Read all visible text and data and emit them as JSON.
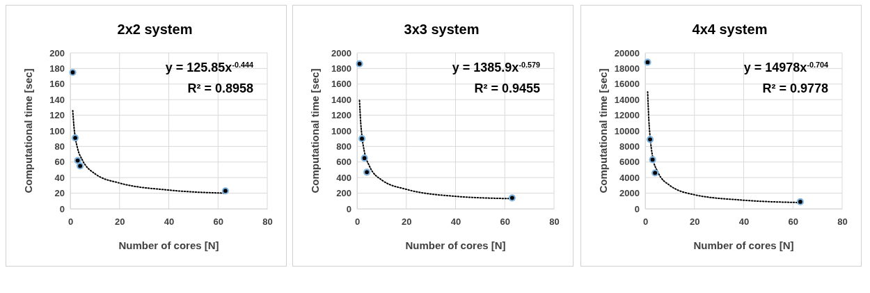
{
  "chart_data": [
    {
      "type": "scatter",
      "title": "2x2 system",
      "xlabel": "Number of cores [N]",
      "ylabel": "Computational time [sec]",
      "xlim": [
        0,
        80
      ],
      "xticks": [
        0,
        20,
        40,
        60,
        80
      ],
      "ylim": [
        0,
        200
      ],
      "yticks": [
        0,
        20,
        40,
        60,
        80,
        100,
        120,
        140,
        160,
        180,
        200
      ],
      "grid": true,
      "annotations": [
        "y = 125.85x$^{-0.444}$",
        "R² = 0.8958"
      ],
      "series": [
        {
          "color": "#000000",
          "marker": "circle",
          "x": [
            1,
            2,
            3,
            4,
            63
          ],
          "values": [
            175,
            91,
            62,
            55,
            23
          ]
        },
        {
          "type": "line",
          "color": "#000000",
          "line_style": "dotted",
          "marker": "none",
          "x": [
            1,
            1.5,
            2,
            3,
            5,
            10,
            20,
            40,
            63
          ],
          "values": [
            126,
            105,
            92,
            77,
            62,
            45,
            33,
            24,
            20
          ]
        }
      ]
    },
    {
      "type": "scatter",
      "title": "3x3 system",
      "xlabel": "Number of cores [N]",
      "ylabel": "Computational time [sec]",
      "xlim": [
        0,
        80
      ],
      "xticks": [
        0,
        20,
        40,
        60,
        80
      ],
      "ylim": [
        0,
        2000
      ],
      "yticks": [
        0,
        200,
        400,
        600,
        800,
        1000,
        1200,
        1400,
        1600,
        1800,
        2000
      ],
      "grid": true,
      "annotations": [
        "y = 1385.9x$^{-0.579}$",
        "R² = 0.9455"
      ],
      "series": [
        {
          "color": "#000000",
          "marker": "circle",
          "x": [
            1,
            2,
            3,
            4,
            63
          ],
          "values": [
            1860,
            900,
            650,
            470,
            140
          ]
        },
        {
          "type": "line",
          "color": "#000000",
          "line_style": "dotted",
          "marker": "none",
          "x": [
            1,
            1.5,
            2,
            3,
            5,
            10,
            20,
            40,
            63
          ],
          "values": [
            1390,
            1100,
            930,
            730,
            550,
            370,
            250,
            160,
            130
          ]
        }
      ]
    },
    {
      "type": "scatter",
      "title": "4x4 system",
      "xlabel": "Number of cores [N]",
      "ylabel": "Computational time [sec]",
      "xlim": [
        0,
        80
      ],
      "xticks": [
        0,
        20,
        40,
        60,
        80
      ],
      "ylim": [
        0,
        20000
      ],
      "yticks": [
        0,
        2000,
        4000,
        6000,
        8000,
        10000,
        12000,
        14000,
        16000,
        18000,
        20000
      ],
      "grid": true,
      "annotations": [
        "y = 14978x$^{-0.704}$",
        "R² = 0.9778"
      ],
      "series": [
        {
          "color": "#000000",
          "marker": "circle",
          "x": [
            1,
            2,
            3,
            4,
            63
          ],
          "values": [
            18800,
            8900,
            6300,
            4600,
            900
          ]
        },
        {
          "type": "line",
          "color": "#000000",
          "line_style": "dotted",
          "marker": "none",
          "x": [
            1,
            1.5,
            2,
            3,
            5,
            10,
            20,
            40,
            63
          ],
          "values": [
            15000,
            11300,
            9200,
            6700,
            4800,
            3000,
            1800,
            1100,
            800
          ]
        }
      ]
    }
  ]
}
